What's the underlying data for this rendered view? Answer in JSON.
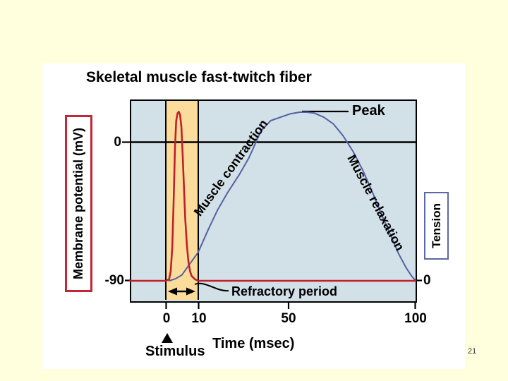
{
  "page": {
    "background_color": "#FFFFDE",
    "page_number": "21"
  },
  "slide": {
    "title": "Skeletal muscle fast-twitch fiber"
  },
  "axes": {
    "membrane": {
      "label": "Membrane potential (mV)",
      "tick_zero": "0",
      "tick_rest": "-90"
    },
    "tension": {
      "label": "Tension",
      "tick_zero": "0"
    },
    "time": {
      "label": "Time (msec)",
      "ticks": [
        "0",
        "10",
        "50",
        "100"
      ]
    }
  },
  "annotations_text": {
    "peak": "Peak",
    "muscle_contraction": "Muscle contraction",
    "muscle_relaxation": "Muscle relaxation",
    "refractory_period": "Refractory period",
    "stimulus": "Stimulus"
  },
  "colors": {
    "page_background": "#FFFFDE",
    "plot_background": "#D2E0E7",
    "refractory_band": "#FBDC9B",
    "membrane_trace": "#C1202A",
    "tension_trace": "#5561A3",
    "membrane_box_border": "#C22637",
    "tension_box_border": "#5B68A6"
  },
  "chart_data": {
    "type": "line",
    "title": "Skeletal muscle fast-twitch fiber",
    "xlabel": "Time (msec)",
    "x_ticks": [
      0,
      10,
      50,
      100
    ],
    "x_axis_note": "x scale is non-linear: the 0-10 msec interval is drawn expanded",
    "grid": false,
    "series": [
      {
        "name": "Membrane potential",
        "units": "mV",
        "axis": "left",
        "color": "#C1202A",
        "y_ticks": [
          0,
          -90
        ],
        "resting_value": -90,
        "spike_peak_value": 20,
        "points": [
          [
            -11,
            -90
          ],
          [
            -5,
            -90
          ],
          [
            0,
            -90
          ],
          [
            1,
            -89
          ],
          [
            1.5,
            -84
          ],
          [
            2,
            -68
          ],
          [
            2.4,
            -40
          ],
          [
            2.8,
            -5
          ],
          [
            3.2,
            14
          ],
          [
            3.6,
            19
          ],
          [
            4,
            20
          ],
          [
            4.4,
            18
          ],
          [
            4.8,
            10
          ],
          [
            5.2,
            -8
          ],
          [
            5.6,
            -30
          ],
          [
            6,
            -50
          ],
          [
            6.5,
            -67
          ],
          [
            7,
            -78
          ],
          [
            7.5,
            -84
          ],
          [
            8,
            -87
          ],
          [
            9,
            -89
          ],
          [
            10,
            -90
          ],
          [
            20,
            -90
          ],
          [
            50,
            -90
          ],
          [
            100,
            -90
          ]
        ]
      },
      {
        "name": "Tension",
        "units": "relative (0 = rest, 1 = peak)",
        "axis": "right",
        "color": "#5561A3",
        "y_ticks": [
          0
        ],
        "points": [
          [
            1,
            0
          ],
          [
            3,
            0.012
          ],
          [
            5,
            0.035
          ],
          [
            7,
            0.09
          ],
          [
            10,
            0.17
          ],
          [
            14,
            0.3
          ],
          [
            18,
            0.42
          ],
          [
            22,
            0.52
          ],
          [
            27,
            0.63
          ],
          [
            31,
            0.73
          ],
          [
            36,
            0.89
          ],
          [
            40,
            0.95
          ],
          [
            44,
            0.97
          ],
          [
            48,
            0.99
          ],
          [
            52,
            1.0
          ],
          [
            55,
            1.0
          ],
          [
            58,
            0.995
          ],
          [
            62,
            0.97
          ],
          [
            66,
            0.93
          ],
          [
            70,
            0.86
          ],
          [
            74,
            0.77
          ],
          [
            78,
            0.66
          ],
          [
            82,
            0.53
          ],
          [
            86,
            0.39
          ],
          [
            90,
            0.26
          ],
          [
            93,
            0.16
          ],
          [
            96,
            0.08
          ],
          [
            98,
            0.035
          ],
          [
            100,
            0
          ]
        ]
      }
    ],
    "annotations": [
      {
        "text": "Peak",
        "refers_to": "tension maximum near 50 msec"
      },
      {
        "text": "Refractory period",
        "refers_to": "highlighted 0-10 msec band"
      },
      {
        "text": "Stimulus",
        "refers_to": "t = 0 msec"
      },
      {
        "text": "Muscle contraction",
        "refers_to": "rising phase of tension curve"
      },
      {
        "text": "Muscle relaxation",
        "refers_to": "falling phase of tension curve"
      }
    ]
  }
}
